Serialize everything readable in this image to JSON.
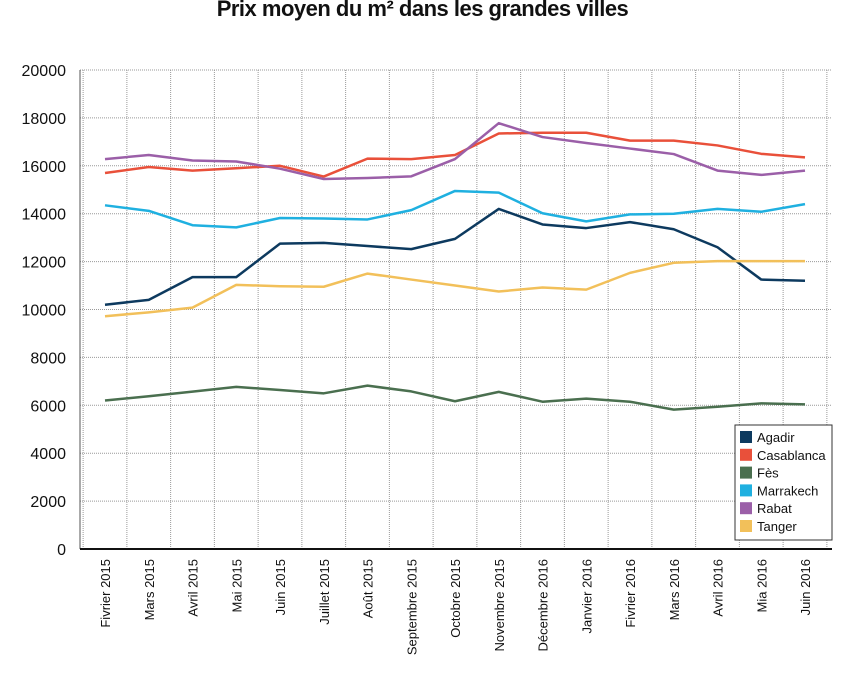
{
  "chart_data": {
    "type": "line",
    "title": "Prix moyen du m² dans les grandes villes",
    "xlabel": "",
    "ylabel": "",
    "ylim": [
      0,
      20000
    ],
    "yticks": [
      0,
      2000,
      4000,
      6000,
      8000,
      10000,
      12000,
      14000,
      16000,
      18000,
      20000
    ],
    "grid": true,
    "legend_position": "bottom-right",
    "categories": [
      "Fivrier 2015",
      "Mars 2015",
      "Avril 2015",
      "Mai 2015",
      "Juin 2015",
      "Juillet 2015",
      "Août 2015",
      "Septembre 2015",
      "Octobre 2015",
      "Novembre 2015",
      "Décembre 2016",
      "Janvier 2016",
      "Fivrier 2016",
      "Mars 2016",
      "Avril 2016",
      "Mia 2016",
      "Juin 2016"
    ],
    "series": [
      {
        "name": "Agadir",
        "color": "#0d3a5f",
        "values": [
          10200,
          10400,
          11350,
          11350,
          12750,
          12780,
          12650,
          12520,
          12950,
          14200,
          13550,
          13400,
          13650,
          13350,
          12600,
          11250,
          11200
        ]
      },
      {
        "name": "Casablanca",
        "color": "#e9503a",
        "values": [
          15700,
          15950,
          15800,
          15900,
          16000,
          15550,
          16300,
          16280,
          16450,
          17350,
          17380,
          17380,
          17050,
          17050,
          16850,
          16500,
          16350
        ]
      },
      {
        "name": "Fès",
        "color": "#4a6f4f",
        "values": [
          6200,
          6380,
          6570,
          6770,
          6640,
          6500,
          6820,
          6580,
          6170,
          6560,
          6150,
          6280,
          6150,
          5820,
          5940,
          6080,
          6040
        ]
      },
      {
        "name": "Marrakech",
        "color": "#1fb0e0",
        "values": [
          14350,
          14120,
          13520,
          13430,
          13820,
          13800,
          13760,
          14150,
          14950,
          14880,
          14020,
          13680,
          13970,
          14000,
          14200,
          14080,
          14400
        ]
      },
      {
        "name": "Rabat",
        "color": "#9b5fa8",
        "values": [
          16280,
          16450,
          16220,
          16180,
          15880,
          15450,
          15490,
          15560,
          16280,
          17780,
          17200,
          16950,
          16720,
          16490,
          15800,
          15620,
          15800
        ]
      },
      {
        "name": "Tanger",
        "color": "#f2c05a",
        "values": [
          9720,
          9880,
          10080,
          11030,
          10970,
          10950,
          11500,
          11250,
          11000,
          10750,
          10920,
          10830,
          11530,
          11950,
          12020,
          12020,
          12020
        ]
      }
    ]
  }
}
